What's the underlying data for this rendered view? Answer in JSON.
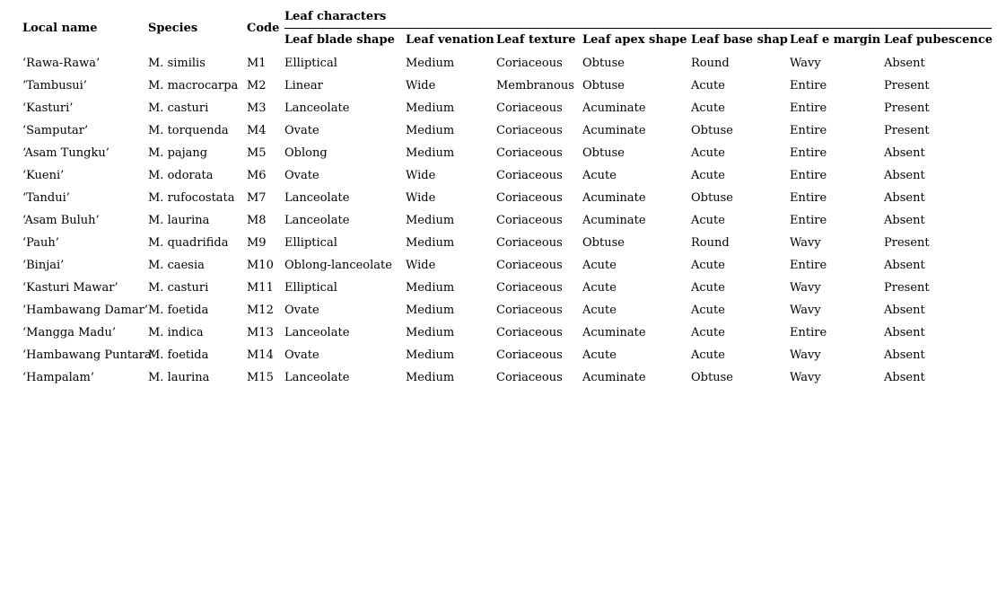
{
  "table": {
    "spanner_title": "Leaf characters",
    "fixed_headers": [
      "Local name",
      "Species",
      "Code"
    ],
    "leaf_headers": [
      "Leaf blade shape",
      "Leaf venation",
      "Leaf texture",
      "Leaf apex shape",
      "Leaf base shap",
      "Leaf e margin",
      "Leaf pubescence"
    ],
    "rows": [
      [
        "‘Rawa-Rawa’",
        "M. similis",
        "M1",
        "Elliptical",
        "Medium",
        "Coriaceous",
        "Obtuse",
        "Round",
        "Wavy",
        "Absent"
      ],
      [
        "‘Tambusui’",
        "M. macrocarpa",
        "M2",
        "Linear",
        "Wide",
        "Membranous",
        "Obtuse",
        "Acute",
        "Entire",
        "Present"
      ],
      [
        "‘Kasturi’",
        "M. casturi",
        "M3",
        "Lanceolate",
        "Medium",
        "Coriaceous",
        "Acuminate",
        "Acute",
        "Entire",
        "Present"
      ],
      [
        "‘Samputar’",
        "M. torquenda",
        "M4",
        "Ovate",
        "Medium",
        "Coriaceous",
        "Acuminate",
        "Obtuse",
        "Entire",
        "Present"
      ],
      [
        "‘Asam Tungku’",
        "M. pajang",
        "M5",
        "Oblong",
        "Medium",
        "Coriaceous",
        "Obtuse",
        "Acute",
        "Entire",
        "Absent"
      ],
      [
        "‘Kueni’",
        "M. odorata",
        "M6",
        "Ovate",
        "Wide",
        "Coriaceous",
        "Acute",
        "Acute",
        "Entire",
        "Absent"
      ],
      [
        "‘Tandui’",
        "M. rufocostata",
        "M7",
        "Lanceolate",
        "Wide",
        "Coriaceous",
        "Acuminate",
        "Obtuse",
        "Entire",
        "Absent"
      ],
      [
        "‘Asam Buluh’",
        "M. laurina",
        "M8",
        "Lanceolate",
        "Medium",
        "Coriaceous",
        "Acuminate",
        "Acute",
        "Entire",
        "Absent"
      ],
      [
        "‘Pauh’",
        "M. quadrifida",
        "M9",
        "Elliptical",
        "Medium",
        "Coriaceous",
        "Obtuse",
        "Round",
        "Wavy",
        "Present"
      ],
      [
        "‘Binjai’",
        "M. caesia",
        "M10",
        "Oblong-lanceolate",
        "Wide",
        "Coriaceous",
        "Acute",
        "Acute",
        "Entire",
        "Absent"
      ],
      [
        "‘Kasturi Mawar’",
        "M. casturi",
        "M11",
        "Elliptical",
        "Medium",
        "Coriaceous",
        "Acute",
        "Acute",
        "Wavy",
        "Present"
      ],
      [
        "‘Hambawang Damar’",
        "M. foetida",
        "M12",
        "Ovate",
        "Medium",
        "Coriaceous",
        "Acute",
        "Acute",
        "Wavy",
        "Absent"
      ],
      [
        "‘Mangga Madu’",
        "M. indica",
        "M13",
        "Lanceolate",
        "Medium",
        "Coriaceous",
        "Acuminate",
        "Acute",
        "Entire",
        "Absent"
      ],
      [
        "‘Hambawang Puntara’",
        "M. foetida",
        "M14",
        "Ovate",
        "Medium",
        "Coriaceous",
        "Acute",
        "Acute",
        "Wavy",
        "Absent"
      ],
      [
        "‘Hampalam’",
        "M. laurina",
        "M15",
        "Lanceolate",
        "Medium",
        "Coriaceous",
        "Acuminate",
        "Obtuse",
        "Wavy",
        "Absent"
      ]
    ]
  },
  "colors": {
    "text": "#000000",
    "background": "#ffffff",
    "rule": "#000000"
  }
}
